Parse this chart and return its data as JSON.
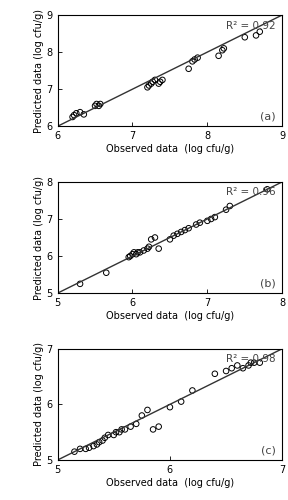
{
  "panels": [
    {
      "label": "(a)",
      "r2": "R² = 0.92",
      "xlim": [
        6,
        9
      ],
      "ylim": [
        6,
        9
      ],
      "xticks": [
        6,
        7,
        8,
        9
      ],
      "yticks": [
        6,
        7,
        8,
        9
      ],
      "scatter_x": [
        6.2,
        6.22,
        6.25,
        6.3,
        6.35,
        6.5,
        6.52,
        6.55,
        6.57,
        7.2,
        7.22,
        7.25,
        7.27,
        7.3,
        7.35,
        7.37,
        7.4,
        7.75,
        7.8,
        7.83,
        7.87,
        8.15,
        8.2,
        8.22,
        8.5,
        8.65,
        8.7
      ],
      "scatter_y": [
        6.25,
        6.3,
        6.35,
        6.38,
        6.32,
        6.55,
        6.6,
        6.55,
        6.6,
        7.05,
        7.1,
        7.15,
        7.2,
        7.25,
        7.15,
        7.2,
        7.25,
        7.55,
        7.75,
        7.8,
        7.85,
        7.9,
        8.05,
        8.1,
        8.4,
        8.45,
        8.55
      ],
      "line_x": [
        6.0,
        9.0
      ],
      "line_y": [
        6.0,
        9.0
      ],
      "xlabel": "Observed data  (log cfu/g)",
      "ylabel": "Predicted data (log cfu/g)"
    },
    {
      "label": "(b)",
      "r2": "R² = 0.96",
      "xlim": [
        5,
        8
      ],
      "ylim": [
        5,
        8
      ],
      "xticks": [
        5,
        6,
        7,
        8
      ],
      "yticks": [
        5,
        6,
        7,
        8
      ],
      "scatter_x": [
        5.3,
        5.65,
        5.95,
        5.97,
        6.0,
        6.02,
        6.05,
        6.07,
        6.1,
        6.15,
        6.2,
        6.22,
        6.25,
        6.3,
        6.35,
        6.5,
        6.55,
        6.6,
        6.65,
        6.7,
        6.75,
        6.85,
        6.9,
        7.0,
        7.05,
        7.1,
        7.25,
        7.3,
        7.8
      ],
      "scatter_y": [
        5.25,
        5.55,
        5.97,
        6.0,
        6.05,
        6.1,
        6.05,
        6.1,
        6.1,
        6.15,
        6.2,
        6.25,
        6.45,
        6.5,
        6.2,
        6.45,
        6.55,
        6.6,
        6.65,
        6.7,
        6.75,
        6.85,
        6.9,
        6.95,
        7.0,
        7.05,
        7.25,
        7.35,
        7.8
      ],
      "line_x": [
        5.0,
        8.0
      ],
      "line_y": [
        5.0,
        8.0
      ],
      "xlabel": "Observed data  (log cfu/g)",
      "ylabel": "Predicted data (log cfu/g)"
    },
    {
      "label": "(c)",
      "r2": "R² = 0.98",
      "xlim": [
        5,
        7
      ],
      "ylim": [
        5,
        7
      ],
      "xticks": [
        5,
        6,
        7
      ],
      "yticks": [
        5,
        6,
        7
      ],
      "scatter_x": [
        5.15,
        5.2,
        5.25,
        5.28,
        5.32,
        5.35,
        5.37,
        5.4,
        5.42,
        5.45,
        5.5,
        5.52,
        5.55,
        5.57,
        5.6,
        5.65,
        5.7,
        5.75,
        5.8,
        5.85,
        5.9,
        6.0,
        6.1,
        6.2,
        6.4,
        6.5,
        6.55,
        6.6,
        6.65,
        6.7,
        6.72,
        6.75,
        6.8
      ],
      "scatter_y": [
        5.15,
        5.2,
        5.2,
        5.22,
        5.25,
        5.28,
        5.32,
        5.35,
        5.4,
        5.45,
        5.45,
        5.5,
        5.5,
        5.55,
        5.55,
        5.6,
        5.65,
        5.8,
        5.9,
        5.55,
        5.6,
        5.95,
        6.05,
        6.25,
        6.55,
        6.6,
        6.65,
        6.7,
        6.65,
        6.7,
        6.75,
        6.75,
        6.75
      ],
      "line_x": [
        5.0,
        7.0
      ],
      "line_y": [
        5.0,
        7.0
      ],
      "xlabel": "Observed data  (log cfu/g)",
      "ylabel": "Predicted data (log cfu/g)"
    }
  ],
  "marker_color": "#000000",
  "marker_facecolor": "none",
  "marker_size": 4,
  "marker_lw": 0.7,
  "line_color": "#333333",
  "line_width": 1.0,
  "font_size_label": 7,
  "font_size_tick": 7,
  "font_size_r2": 7.5,
  "font_size_panel_label": 8,
  "bg_color": "#ffffff",
  "border_color": "#888888"
}
